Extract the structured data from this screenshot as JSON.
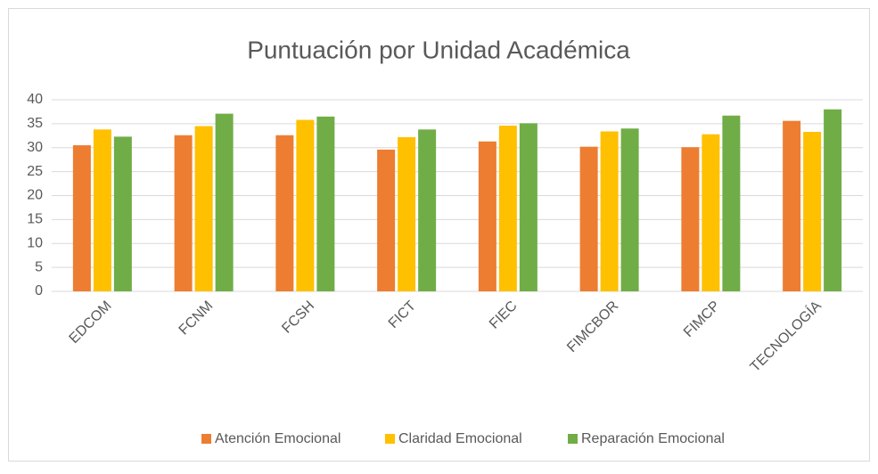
{
  "chart_data": {
    "type": "bar",
    "title": "Puntuación por Unidad Académica",
    "categories": [
      "EDCOM",
      "FCNM",
      "FCSH",
      "FICT",
      "FIEC",
      "FIMCBOR",
      "FIMCP",
      "TECNOLOGÍA"
    ],
    "series": [
      {
        "name": "Atención Emocional",
        "color": "#ed7d31",
        "values": [
          30.5,
          32.6,
          32.6,
          29.6,
          31.3,
          30.2,
          30.1,
          35.6
        ]
      },
      {
        "name": "Claridad Emocional",
        "color": "#ffc000",
        "values": [
          33.8,
          34.5,
          35.8,
          32.2,
          34.6,
          33.4,
          32.8,
          33.3
        ]
      },
      {
        "name": "Reparación Emocional",
        "color": "#70ad47",
        "values": [
          32.3,
          37.1,
          36.5,
          33.8,
          35.1,
          34.0,
          36.7,
          38.0
        ]
      }
    ],
    "ylim": [
      0,
      40
    ],
    "yticks": [
      0,
      5,
      10,
      15,
      20,
      25,
      30,
      35,
      40
    ],
    "grid": true,
    "legend": "bottom"
  }
}
